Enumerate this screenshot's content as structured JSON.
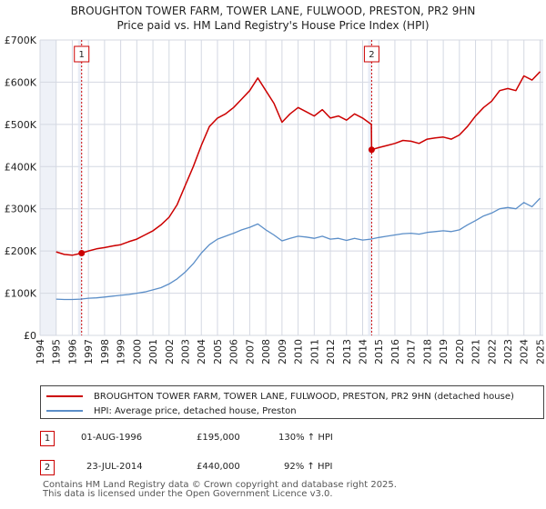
{
  "chart_data": {
    "type": "line",
    "title": "BROUGHTON TOWER FARM, TOWER LANE, FULWOOD, PRESTON, PR2 9HN",
    "subtitle": "Price paid vs. HM Land Registry's House Price Index (HPI)",
    "xlabel": "",
    "ylabel": "",
    "xlim": [
      1994,
      2025.2
    ],
    "ylim": [
      0,
      700000
    ],
    "y_ticks": [
      0,
      100000,
      200000,
      300000,
      400000,
      500000,
      600000,
      700000
    ],
    "y_tick_labels": [
      "£0",
      "£100K",
      "£200K",
      "£300K",
      "£400K",
      "£500K",
      "£600K",
      "£700K"
    ],
    "x_ticks": [
      1994,
      1995,
      1996,
      1997,
      1998,
      1999,
      2000,
      2001,
      2002,
      2003,
      2004,
      2005,
      2006,
      2007,
      2008,
      2009,
      2010,
      2011,
      2012,
      2013,
      2014,
      2015,
      2016,
      2017,
      2018,
      2019,
      2020,
      2021,
      2022,
      2023,
      2024,
      2025
    ],
    "x_tick_labels": [
      "1994",
      "1995",
      "1996",
      "1997",
      "1998",
      "1999",
      "2000",
      "2001",
      "2002",
      "2003",
      "2004",
      "2005",
      "2006",
      "2007",
      "2008",
      "2009",
      "2010",
      "2011",
      "2012",
      "2013",
      "2014",
      "2015",
      "2016",
      "2017",
      "2018",
      "2019",
      "2020",
      "2021",
      "2022",
      "2023",
      "2024",
      "2025"
    ],
    "grid": true,
    "data_range": [
      1995.0,
      2025.0
    ],
    "series": [
      {
        "name": "BROUGHTON TOWER FARM, TOWER LANE, FULWOOD, PRESTON, PR2 9HN (detached house)",
        "color": "#cc0000",
        "x": [
          1995.0,
          1995.5,
          1996.0,
          1996.58,
          1997.0,
          1997.5,
          1998.0,
          1998.5,
          1999.0,
          1999.5,
          2000.0,
          2000.5,
          2001.0,
          2001.5,
          2002.0,
          2002.5,
          2003.0,
          2003.5,
          2004.0,
          2004.5,
          2005.0,
          2005.5,
          2006.0,
          2006.5,
          2007.0,
          2007.5,
          2008.0,
          2008.5,
          2009.0,
          2009.5,
          2010.0,
          2010.5,
          2011.0,
          2011.5,
          2012.0,
          2012.5,
          2013.0,
          2013.5,
          2014.0,
          2014.54,
          2014.56,
          2015.0,
          2015.5,
          2016.0,
          2016.5,
          2017.0,
          2017.5,
          2018.0,
          2018.5,
          2019.0,
          2019.5,
          2020.0,
          2020.5,
          2021.0,
          2021.5,
          2022.0,
          2022.5,
          2023.0,
          2023.5,
          2024.0,
          2024.5,
          2025.0
        ],
        "values": [
          198000,
          192000,
          190000,
          195000,
          200000,
          205000,
          208000,
          212000,
          215000,
          222000,
          228000,
          238000,
          248000,
          262000,
          280000,
          310000,
          355000,
          400000,
          450000,
          495000,
          515000,
          525000,
          540000,
          560000,
          580000,
          610000,
          580000,
          550000,
          505000,
          525000,
          540000,
          530000,
          520000,
          535000,
          515000,
          520000,
          510000,
          525000,
          515000,
          500000,
          440000,
          445000,
          450000,
          455000,
          462000,
          460000,
          455000,
          465000,
          468000,
          470000,
          465000,
          475000,
          495000,
          520000,
          540000,
          555000,
          580000,
          585000,
          580000,
          615000,
          605000,
          625000
        ]
      },
      {
        "name": "HPI: Average price, detached house, Preston",
        "color": "#5b8ec8",
        "x": [
          1995.0,
          1995.5,
          1996.0,
          1996.5,
          1997.0,
          1997.5,
          1998.0,
          1998.5,
          1999.0,
          1999.5,
          2000.0,
          2000.5,
          2001.0,
          2001.5,
          2002.0,
          2002.5,
          2003.0,
          2003.5,
          2004.0,
          2004.5,
          2005.0,
          2005.5,
          2006.0,
          2006.5,
          2007.0,
          2007.5,
          2008.0,
          2008.5,
          2009.0,
          2009.5,
          2010.0,
          2010.5,
          2011.0,
          2011.5,
          2012.0,
          2012.5,
          2013.0,
          2013.5,
          2014.0,
          2014.5,
          2015.0,
          2015.5,
          2016.0,
          2016.5,
          2017.0,
          2017.5,
          2018.0,
          2018.5,
          2019.0,
          2019.5,
          2020.0,
          2020.5,
          2021.0,
          2021.5,
          2022.0,
          2022.5,
          2023.0,
          2023.5,
          2024.0,
          2024.5,
          2025.0
        ],
        "values": [
          86000,
          85000,
          85000,
          86000,
          88000,
          89000,
          91000,
          93000,
          95000,
          97000,
          100000,
          103000,
          108000,
          113000,
          122000,
          134000,
          150000,
          170000,
          195000,
          215000,
          228000,
          235000,
          242000,
          250000,
          256000,
          264000,
          250000,
          238000,
          224000,
          230000,
          235000,
          233000,
          230000,
          235000,
          228000,
          230000,
          225000,
          230000,
          226000,
          228000,
          232000,
          235000,
          238000,
          241000,
          242000,
          240000,
          244000,
          246000,
          248000,
          246000,
          250000,
          262000,
          272000,
          283000,
          290000,
          300000,
          303000,
          300000,
          315000,
          305000,
          325000
        ]
      }
    ],
    "annotations": [
      {
        "label": "1",
        "x": 1996.58,
        "value": 195000,
        "date": "01-AUG-1996",
        "price": "£195,000",
        "hpi": "130% ↑ HPI"
      },
      {
        "label": "2",
        "x": 2014.56,
        "value": 440000,
        "date": "23-JUL-2014",
        "price": "£440,000",
        "hpi": "92% ↑ HPI"
      }
    ]
  },
  "legend": {
    "items": [
      {
        "label": "BROUGHTON TOWER FARM, TOWER LANE, FULWOOD, PRESTON, PR2 9HN (detached house)",
        "color": "#cc0000"
      },
      {
        "label": "HPI: Average price, detached house, Preston",
        "color": "#5b8ec8"
      }
    ]
  },
  "transactions": [
    {
      "label": "1",
      "date": "01-AUG-1996",
      "price": "£195,000",
      "hpi": "130% ↑ HPI"
    },
    {
      "label": "2",
      "date": "23-JUL-2014",
      "price": "£440,000",
      "hpi": "92% ↑ HPI"
    }
  ],
  "footer": {
    "line1": "Contains HM Land Registry data © Crown copyright and database right 2025.",
    "line2": "This data is licensed under the Open Government Licence v3.0."
  }
}
